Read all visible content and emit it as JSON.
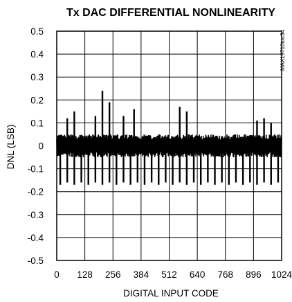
{
  "chart_data": {
    "type": "line",
    "title": "Tx DAC DIFFERENTIAL NONLINEARITY",
    "xlabel": "DIGITAL INPUT CODE",
    "ylabel": "DNL (LSB)",
    "figure_id": "MAX19710toc34",
    "xlim": [
      0,
      1024
    ],
    "ylim": [
      -0.5,
      0.5
    ],
    "xticks": [
      0,
      128,
      256,
      384,
      512,
      640,
      768,
      896,
      1024
    ],
    "xtick_labels": [
      "0",
      "128",
      "256",
      "384",
      "512",
      "640",
      "768",
      "896",
      "1024"
    ],
    "yticks": [
      0.5,
      0.4,
      0.3,
      0.2,
      0.1,
      0,
      -0.1,
      -0.2,
      -0.3,
      -0.4,
      -0.5
    ],
    "ytick_labels": [
      "0.5",
      "0.4",
      "0.3",
      "0.2",
      "0.1",
      "0",
      "-0.1",
      "-0.2",
      "-0.3",
      "-0.4",
      "-0.5"
    ],
    "grid": true,
    "series": [
      {
        "color": "#000000",
        "noise_band": [
          -0.05,
          0.05
        ],
        "positive_spikes": [
          {
            "code": 48,
            "value": 0.12
          },
          {
            "code": 80,
            "value": 0.15
          },
          {
            "code": 176,
            "value": 0.13
          },
          {
            "code": 208,
            "value": 0.24
          },
          {
            "code": 240,
            "value": 0.19
          },
          {
            "code": 304,
            "value": 0.13
          },
          {
            "code": 352,
            "value": 0.16
          },
          {
            "code": 560,
            "value": 0.17
          },
          {
            "code": 592,
            "value": 0.15
          },
          {
            "code": 912,
            "value": 0.11
          },
          {
            "code": 944,
            "value": 0.12
          },
          {
            "code": 976,
            "value": 0.1
          }
        ],
        "negative_spikes": [
          {
            "code": 16,
            "value": -0.17
          },
          {
            "code": 48,
            "value": -0.16
          },
          {
            "code": 80,
            "value": -0.17
          },
          {
            "code": 112,
            "value": -0.16
          },
          {
            "code": 144,
            "value": -0.17
          },
          {
            "code": 176,
            "value": -0.16
          },
          {
            "code": 208,
            "value": -0.17
          },
          {
            "code": 240,
            "value": -0.16
          },
          {
            "code": 272,
            "value": -0.17
          },
          {
            "code": 304,
            "value": -0.16
          },
          {
            "code": 336,
            "value": -0.17
          },
          {
            "code": 368,
            "value": -0.16
          },
          {
            "code": 400,
            "value": -0.17
          },
          {
            "code": 432,
            "value": -0.16
          },
          {
            "code": 464,
            "value": -0.17
          },
          {
            "code": 496,
            "value": -0.16
          },
          {
            "code": 528,
            "value": -0.17
          },
          {
            "code": 560,
            "value": -0.16
          },
          {
            "code": 592,
            "value": -0.17
          },
          {
            "code": 624,
            "value": -0.16
          },
          {
            "code": 656,
            "value": -0.17
          },
          {
            "code": 688,
            "value": -0.16
          },
          {
            "code": 720,
            "value": -0.17
          },
          {
            "code": 752,
            "value": -0.16
          },
          {
            "code": 784,
            "value": -0.17
          },
          {
            "code": 816,
            "value": -0.16
          },
          {
            "code": 848,
            "value": -0.17
          },
          {
            "code": 880,
            "value": -0.16
          },
          {
            "code": 912,
            "value": -0.17
          },
          {
            "code": 944,
            "value": -0.16
          },
          {
            "code": 976,
            "value": -0.17
          },
          {
            "code": 1008,
            "value": -0.16
          }
        ]
      }
    ]
  }
}
